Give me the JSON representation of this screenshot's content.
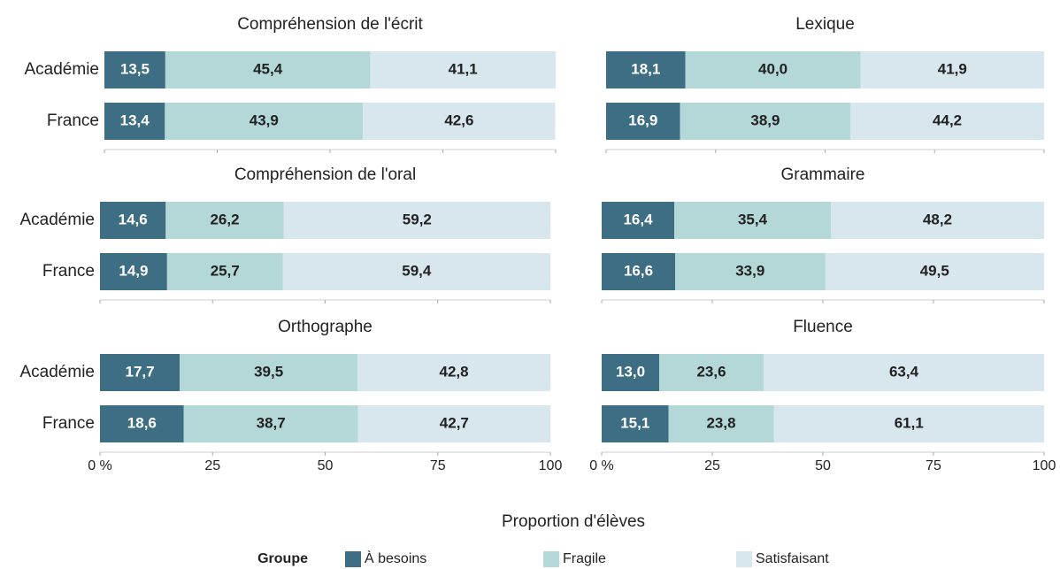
{
  "x_axis_label": "Proportion d'élèves",
  "legend_title": "Groupe",
  "chart_data": [
    {
      "type": "stacked_barh",
      "title": "Compréhension de l'écrit",
      "categories": [
        "Académie",
        "France"
      ],
      "series": [
        {
          "name": "À besoins",
          "color": "#3d6e84",
          "values": [
            13.5,
            13.4
          ],
          "value_labels": [
            "13,5",
            "13,4"
          ]
        },
        {
          "name": "Fragile",
          "color": "#b4d7d8",
          "values": [
            45.4,
            43.9
          ],
          "value_labels": [
            "45,4",
            "43,9"
          ]
        },
        {
          "name": "Satisfaisant",
          "color": "#d8e6ee",
          "values": [
            41.1,
            42.6
          ],
          "value_labels": [
            "41,1",
            "42,6"
          ]
        }
      ],
      "xlim": [
        0,
        100
      ],
      "xticks": [
        0,
        25,
        50,
        75,
        100
      ]
    },
    {
      "type": "stacked_barh",
      "title": "Lexique",
      "categories": [
        null,
        null
      ],
      "series": [
        {
          "name": "À besoins",
          "color": "#3d6e84",
          "values": [
            18.1,
            16.9
          ],
          "value_labels": [
            "18,1",
            "16,9"
          ]
        },
        {
          "name": "Fragile",
          "color": "#b4d7d8",
          "values": [
            40.0,
            38.9
          ],
          "value_labels": [
            "40,0",
            "38,9"
          ]
        },
        {
          "name": "Satisfaisant",
          "color": "#d8e6ee",
          "values": [
            41.9,
            44.2
          ],
          "value_labels": [
            "41,9",
            "44,2"
          ]
        }
      ],
      "xlim": [
        0,
        100
      ],
      "xticks": [
        0,
        25,
        50,
        75,
        100
      ]
    },
    {
      "type": "stacked_barh",
      "title": "Compréhension de l'oral",
      "categories": [
        "Académie",
        "France"
      ],
      "series": [
        {
          "name": "À besoins",
          "color": "#3d6e84",
          "values": [
            14.6,
            14.9
          ],
          "value_labels": [
            "14,6",
            "14,9"
          ]
        },
        {
          "name": "Fragile",
          "color": "#b4d7d8",
          "values": [
            26.2,
            25.7
          ],
          "value_labels": [
            "26,2",
            "25,7"
          ]
        },
        {
          "name": "Satisfaisant",
          "color": "#d8e6ee",
          "values": [
            59.2,
            59.4
          ],
          "value_labels": [
            "59,2",
            "59,4"
          ]
        }
      ],
      "xlim": [
        0,
        100
      ],
      "xticks": [
        0,
        25,
        50,
        75,
        100
      ]
    },
    {
      "type": "stacked_barh",
      "title": "Grammaire",
      "categories": [
        null,
        null
      ],
      "series": [
        {
          "name": "À besoins",
          "color": "#3d6e84",
          "values": [
            16.4,
            16.6
          ],
          "value_labels": [
            "16,4",
            "16,6"
          ]
        },
        {
          "name": "Fragile",
          "color": "#b4d7d8",
          "values": [
            35.4,
            33.9
          ],
          "value_labels": [
            "35,4",
            "33,9"
          ]
        },
        {
          "name": "Satisfaisant",
          "color": "#d8e6ee",
          "values": [
            48.2,
            49.5
          ],
          "value_labels": [
            "48,2",
            "49,5"
          ]
        }
      ],
      "xlim": [
        0,
        100
      ],
      "xticks": [
        0,
        25,
        50,
        75,
        100
      ]
    },
    {
      "type": "stacked_barh",
      "title": "Orthographe",
      "categories": [
        "Académie",
        "France"
      ],
      "series": [
        {
          "name": "À besoins",
          "color": "#3d6e84",
          "values": [
            17.7,
            18.6
          ],
          "value_labels": [
            "17,7",
            "18,6"
          ]
        },
        {
          "name": "Fragile",
          "color": "#b4d7d8",
          "values": [
            39.5,
            38.7
          ],
          "value_labels": [
            "39,5",
            "38,7"
          ]
        },
        {
          "name": "Satisfaisant",
          "color": "#d8e6ee",
          "values": [
            42.8,
            42.7
          ],
          "value_labels": [
            "42,8",
            "42,7"
          ]
        }
      ],
      "xlim": [
        0,
        100
      ],
      "xticks": [
        {
          "value": 0,
          "label": "0 %"
        },
        25,
        50,
        75,
        100
      ],
      "tick_labels": true
    },
    {
      "type": "stacked_barh",
      "title": "Fluence",
      "categories": [
        null,
        null
      ],
      "series": [
        {
          "name": "À besoins",
          "color": "#3d6e84",
          "values": [
            13.0,
            15.1
          ],
          "value_labels": [
            "13,0",
            "15,1"
          ]
        },
        {
          "name": "Fragile",
          "color": "#b4d7d8",
          "values": [
            23.6,
            23.8
          ],
          "value_labels": [
            "23,6",
            "23,8"
          ]
        },
        {
          "name": "Satisfaisant",
          "color": "#d8e6ee",
          "values": [
            63.4,
            61.1
          ],
          "value_labels": [
            "63,4",
            "61,1"
          ]
        }
      ],
      "xlim": [
        0,
        100
      ],
      "xticks": [
        {
          "value": 0,
          "label": "0 %"
        },
        25,
        50,
        75,
        100
      ],
      "tick_labels": true
    }
  ]
}
